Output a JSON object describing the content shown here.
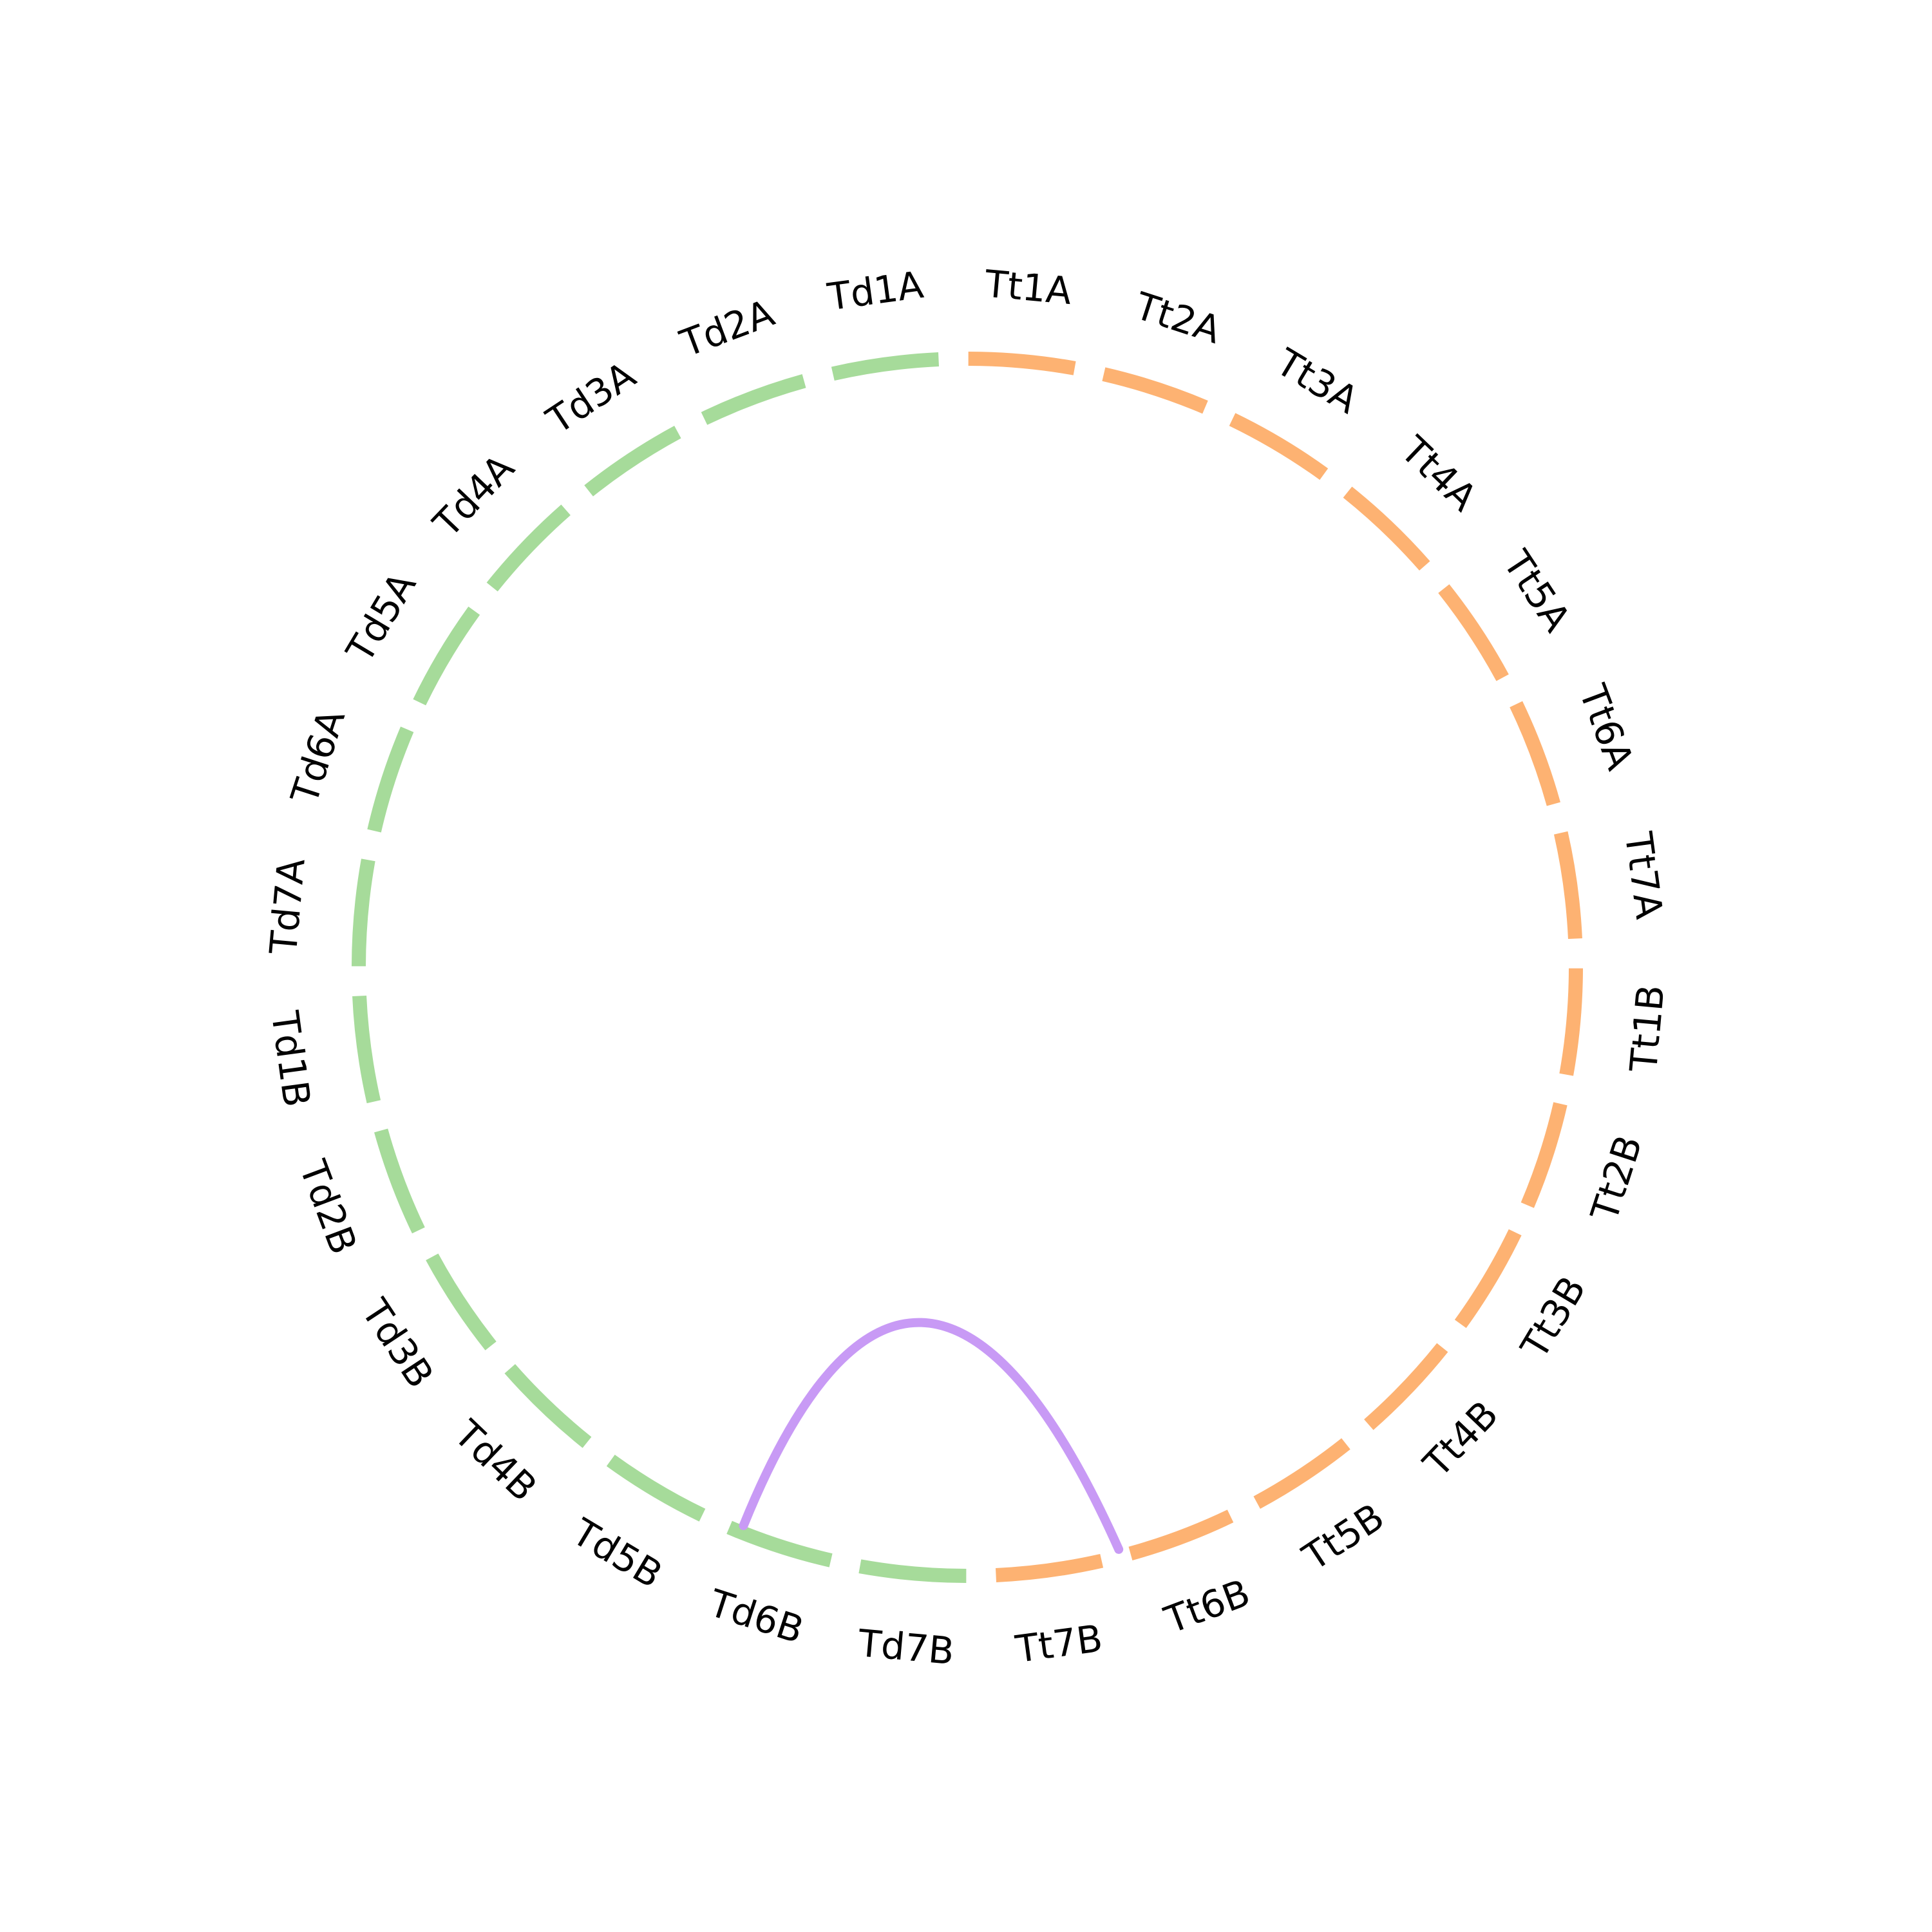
{
  "diagram": {
    "type": "circos",
    "groups": [
      {
        "id": "Td",
        "color": "#a6db9a",
        "chromosomes": [
          "Td1A",
          "Td2A",
          "Td3A",
          "Td4A",
          "Td5A",
          "Td6A",
          "Td7A",
          "Td1B",
          "Td2B",
          "Td3B",
          "Td4B",
          "Td5B",
          "Td6B",
          "Td7B"
        ]
      },
      {
        "id": "Tt",
        "color": "#fdb272",
        "chromosomes": [
          "Tt1A",
          "Tt2A",
          "Tt3A",
          "Tt4A",
          "Tt5A",
          "Tt6A",
          "Tt7A",
          "Tt1B",
          "Tt2B",
          "Tt3B",
          "Tt4B",
          "Tt5B",
          "Tt6B",
          "Tt7B"
        ]
      }
    ],
    "links": [
      {
        "from": "Td5B",
        "to": "Tt6B",
        "color": "#c89af5"
      }
    ]
  }
}
